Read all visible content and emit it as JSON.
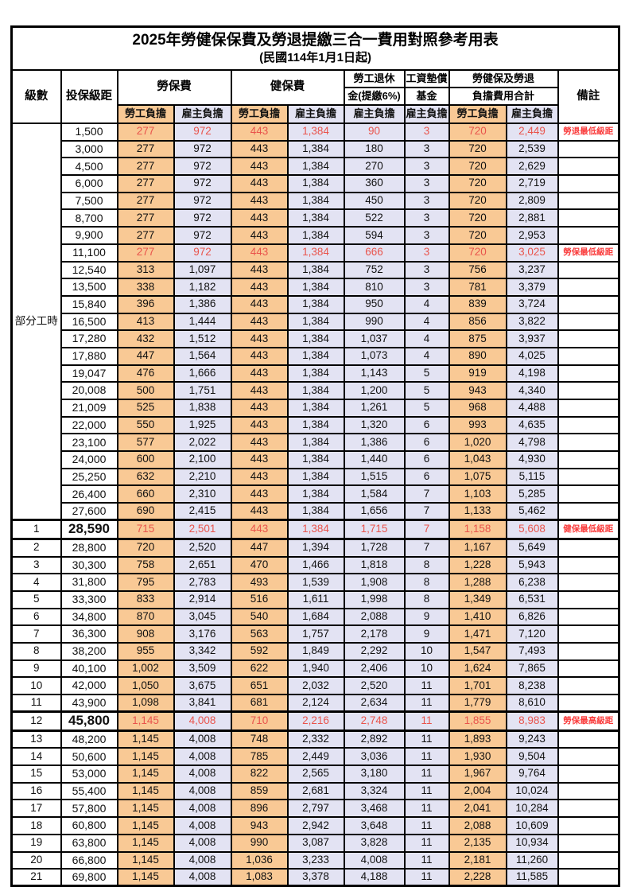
{
  "title": "2025年勞健保保費及勞退提繳三合一費用對照參考用表",
  "subtitle": "(民國114年1月1日起)",
  "colors": {
    "employee_bg": "#f9c995",
    "employer_bg": "#e3e3f3",
    "red_value": "#e9544c",
    "red_remark": "#fa3b3b",
    "border": "#000000"
  },
  "header": {
    "level": "級數",
    "bracket": "投保級距",
    "labor_insurance": "勞保費",
    "health_insurance": "健保費",
    "pension_line1": "勞工退休",
    "pension_line2": "金(提繳6%)",
    "wage_fund_line1": "工資墊償",
    "wage_fund_line2": "基金",
    "total_line1": "勞健保及勞退",
    "total_line2": "負擔費用合計",
    "remark": "備註",
    "employee": "勞工負擔",
    "employer": "雇主負擔"
  },
  "table": {
    "part_time_label": "部分工時",
    "part_time_rowspan": 23,
    "columns": [
      "level",
      "bracket",
      "labor_employee",
      "labor_employer",
      "health_employee",
      "health_employer",
      "pension_employer",
      "wage_fund_employer",
      "total_employee",
      "total_employer",
      "remark"
    ],
    "rows": [
      {
        "level": null,
        "bracket": "1,500",
        "values": [
          "277",
          "972",
          "443",
          "1,384",
          "90",
          "3",
          "720",
          "2,449"
        ],
        "remark": "勞退最低級距",
        "red": true
      },
      {
        "level": null,
        "bracket": "3,000",
        "values": [
          "277",
          "972",
          "443",
          "1,384",
          "180",
          "3",
          "720",
          "2,539"
        ],
        "remark": ""
      },
      {
        "level": null,
        "bracket": "4,500",
        "values": [
          "277",
          "972",
          "443",
          "1,384",
          "270",
          "3",
          "720",
          "2,629"
        ],
        "remark": ""
      },
      {
        "level": null,
        "bracket": "6,000",
        "values": [
          "277",
          "972",
          "443",
          "1,384",
          "360",
          "3",
          "720",
          "2,719"
        ],
        "remark": ""
      },
      {
        "level": null,
        "bracket": "7,500",
        "values": [
          "277",
          "972",
          "443",
          "1,384",
          "450",
          "3",
          "720",
          "2,809"
        ],
        "remark": ""
      },
      {
        "level": null,
        "bracket": "8,700",
        "values": [
          "277",
          "972",
          "443",
          "1,384",
          "522",
          "3",
          "720",
          "2,881"
        ],
        "remark": ""
      },
      {
        "level": null,
        "bracket": "9,900",
        "values": [
          "277",
          "972",
          "443",
          "1,384",
          "594",
          "3",
          "720",
          "2,953"
        ],
        "remark": ""
      },
      {
        "level": null,
        "bracket": "11,100",
        "values": [
          "277",
          "972",
          "443",
          "1,384",
          "666",
          "3",
          "720",
          "3,025"
        ],
        "remark": "勞保最低級距",
        "red": true
      },
      {
        "level": null,
        "bracket": "12,540",
        "values": [
          "313",
          "1,097",
          "443",
          "1,384",
          "752",
          "3",
          "756",
          "3,237"
        ],
        "remark": ""
      },
      {
        "level": null,
        "bracket": "13,500",
        "values": [
          "338",
          "1,182",
          "443",
          "1,384",
          "810",
          "3",
          "781",
          "3,379"
        ],
        "remark": ""
      },
      {
        "level": null,
        "bracket": "15,840",
        "values": [
          "396",
          "1,386",
          "443",
          "1,384",
          "950",
          "4",
          "839",
          "3,724"
        ],
        "remark": ""
      },
      {
        "level": null,
        "bracket": "16,500",
        "values": [
          "413",
          "1,444",
          "443",
          "1,384",
          "990",
          "4",
          "856",
          "3,822"
        ],
        "remark": ""
      },
      {
        "level": null,
        "bracket": "17,280",
        "values": [
          "432",
          "1,512",
          "443",
          "1,384",
          "1,037",
          "4",
          "875",
          "3,937"
        ],
        "remark": ""
      },
      {
        "level": null,
        "bracket": "17,880",
        "values": [
          "447",
          "1,564",
          "443",
          "1,384",
          "1,073",
          "4",
          "890",
          "4,025"
        ],
        "remark": ""
      },
      {
        "level": null,
        "bracket": "19,047",
        "values": [
          "476",
          "1,666",
          "443",
          "1,384",
          "1,143",
          "5",
          "919",
          "4,198"
        ],
        "remark": ""
      },
      {
        "level": null,
        "bracket": "20,008",
        "values": [
          "500",
          "1,751",
          "443",
          "1,384",
          "1,200",
          "5",
          "943",
          "4,340"
        ],
        "remark": ""
      },
      {
        "level": null,
        "bracket": "21,009",
        "values": [
          "525",
          "1,838",
          "443",
          "1,384",
          "1,261",
          "5",
          "968",
          "4,488"
        ],
        "remark": ""
      },
      {
        "level": null,
        "bracket": "22,000",
        "values": [
          "550",
          "1,925",
          "443",
          "1,384",
          "1,320",
          "6",
          "993",
          "4,635"
        ],
        "remark": ""
      },
      {
        "level": null,
        "bracket": "23,100",
        "values": [
          "577",
          "2,022",
          "443",
          "1,384",
          "1,386",
          "6",
          "1,020",
          "4,798"
        ],
        "remark": ""
      },
      {
        "level": null,
        "bracket": "24,000",
        "values": [
          "600",
          "2,100",
          "443",
          "1,384",
          "1,440",
          "6",
          "1,043",
          "4,930"
        ],
        "remark": ""
      },
      {
        "level": null,
        "bracket": "25,250",
        "values": [
          "632",
          "2,210",
          "443",
          "1,384",
          "1,515",
          "6",
          "1,075",
          "5,115"
        ],
        "remark": ""
      },
      {
        "level": null,
        "bracket": "26,400",
        "values": [
          "660",
          "2,310",
          "443",
          "1,384",
          "1,584",
          "7",
          "1,103",
          "5,285"
        ],
        "remark": ""
      },
      {
        "level": null,
        "bracket": "27,600",
        "values": [
          "690",
          "2,415",
          "443",
          "1,384",
          "1,656",
          "7",
          "1,133",
          "5,462"
        ],
        "remark": ""
      },
      {
        "level": "1",
        "bracket": "28,590",
        "values": [
          "715",
          "2,501",
          "443",
          "1,384",
          "1,715",
          "7",
          "1,158",
          "5,608"
        ],
        "remark": "健保最低級距",
        "red": true,
        "thick": true,
        "big": true
      },
      {
        "level": "2",
        "bracket": "28,800",
        "values": [
          "720",
          "2,520",
          "447",
          "1,394",
          "1,728",
          "7",
          "1,167",
          "5,649"
        ],
        "remark": ""
      },
      {
        "level": "3",
        "bracket": "30,300",
        "values": [
          "758",
          "2,651",
          "470",
          "1,466",
          "1,818",
          "8",
          "1,228",
          "5,943"
        ],
        "remark": ""
      },
      {
        "level": "4",
        "bracket": "31,800",
        "values": [
          "795",
          "2,783",
          "493",
          "1,539",
          "1,908",
          "8",
          "1,288",
          "6,238"
        ],
        "remark": ""
      },
      {
        "level": "5",
        "bracket": "33,300",
        "values": [
          "833",
          "2,914",
          "516",
          "1,611",
          "1,998",
          "8",
          "1,349",
          "6,531"
        ],
        "remark": ""
      },
      {
        "level": "6",
        "bracket": "34,800",
        "values": [
          "870",
          "3,045",
          "540",
          "1,684",
          "2,088",
          "9",
          "1,410",
          "6,826"
        ],
        "remark": ""
      },
      {
        "level": "7",
        "bracket": "36,300",
        "values": [
          "908",
          "3,176",
          "563",
          "1,757",
          "2,178",
          "9",
          "1,471",
          "7,120"
        ],
        "remark": ""
      },
      {
        "level": "8",
        "bracket": "38,200",
        "values": [
          "955",
          "3,342",
          "592",
          "1,849",
          "2,292",
          "10",
          "1,547",
          "7,493"
        ],
        "remark": ""
      },
      {
        "level": "9",
        "bracket": "40,100",
        "values": [
          "1,002",
          "3,509",
          "622",
          "1,940",
          "2,406",
          "10",
          "1,624",
          "7,865"
        ],
        "remark": ""
      },
      {
        "level": "10",
        "bracket": "42,000",
        "values": [
          "1,050",
          "3,675",
          "651",
          "2,032",
          "2,520",
          "11",
          "1,701",
          "8,238"
        ],
        "remark": ""
      },
      {
        "level": "11",
        "bracket": "43,900",
        "values": [
          "1,098",
          "3,841",
          "681",
          "2,124",
          "2,634",
          "11",
          "1,779",
          "8,610"
        ],
        "remark": ""
      },
      {
        "level": "12",
        "bracket": "45,800",
        "values": [
          "1,145",
          "4,008",
          "710",
          "2,216",
          "2,748",
          "11",
          "1,855",
          "8,983"
        ],
        "remark": "勞保最高級距",
        "red": true,
        "thick": true,
        "big": true
      },
      {
        "level": "13",
        "bracket": "48,200",
        "values": [
          "1,145",
          "4,008",
          "748",
          "2,332",
          "2,892",
          "11",
          "1,893",
          "9,243"
        ],
        "remark": ""
      },
      {
        "level": "14",
        "bracket": "50,600",
        "values": [
          "1,145",
          "4,008",
          "785",
          "2,449",
          "3,036",
          "11",
          "1,930",
          "9,504"
        ],
        "remark": ""
      },
      {
        "level": "15",
        "bracket": "53,000",
        "values": [
          "1,145",
          "4,008",
          "822",
          "2,565",
          "3,180",
          "11",
          "1,967",
          "9,764"
        ],
        "remark": ""
      },
      {
        "level": "16",
        "bracket": "55,400",
        "values": [
          "1,145",
          "4,008",
          "859",
          "2,681",
          "3,324",
          "11",
          "2,004",
          "10,024"
        ],
        "remark": ""
      },
      {
        "level": "17",
        "bracket": "57,800",
        "values": [
          "1,145",
          "4,008",
          "896",
          "2,797",
          "3,468",
          "11",
          "2,041",
          "10,284"
        ],
        "remark": ""
      },
      {
        "level": "18",
        "bracket": "60,800",
        "values": [
          "1,145",
          "4,008",
          "943",
          "2,942",
          "3,648",
          "11",
          "2,088",
          "10,609"
        ],
        "remark": ""
      },
      {
        "level": "19",
        "bracket": "63,800",
        "values": [
          "1,145",
          "4,008",
          "990",
          "3,087",
          "3,828",
          "11",
          "2,135",
          "10,934"
        ],
        "remark": ""
      },
      {
        "level": "20",
        "bracket": "66,800",
        "values": [
          "1,145",
          "4,008",
          "1,036",
          "3,233",
          "4,008",
          "11",
          "2,181",
          "11,260"
        ],
        "remark": ""
      },
      {
        "level": "21",
        "bracket": "69,800",
        "values": [
          "1,145",
          "4,008",
          "1,083",
          "3,378",
          "4,188",
          "11",
          "2,228",
          "11,585"
        ],
        "remark": ""
      }
    ]
  }
}
